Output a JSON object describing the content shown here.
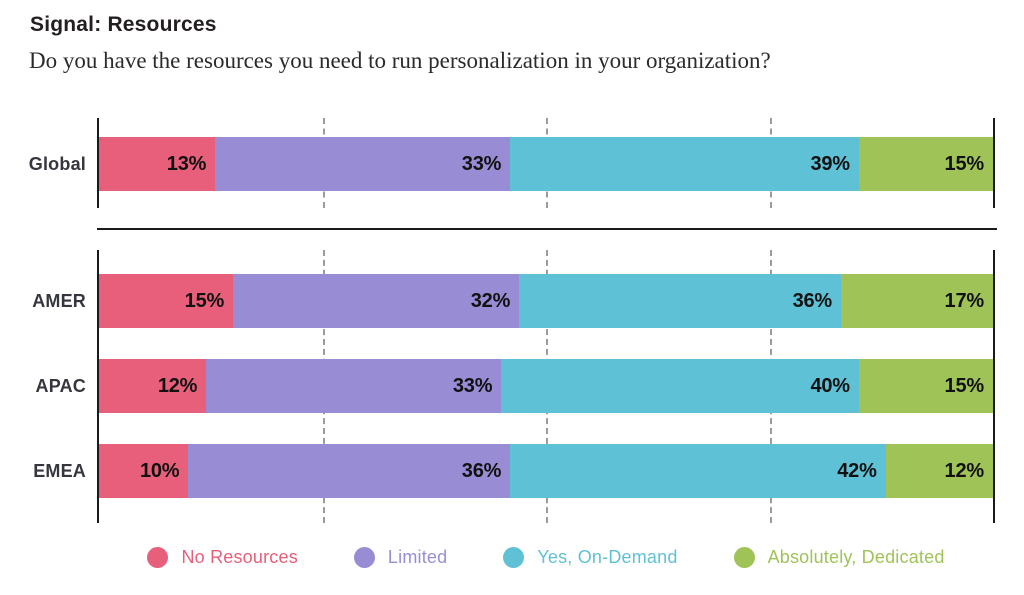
{
  "header": {
    "title": "Signal: Resources",
    "subtitle": "Do you have the resources you need to run personalization in your organization?"
  },
  "chart_data": {
    "type": "bar",
    "stacked": true,
    "orientation": "horizontal",
    "value_unit": "%",
    "xlim": [
      0,
      100
    ],
    "grid": "dashed-vertical",
    "gridlines_percent": [
      25,
      50,
      75
    ],
    "legend_position": "bottom",
    "categories": [
      "Global",
      "AMER",
      "APAC",
      "EMEA"
    ],
    "groups": [
      [
        "Global"
      ],
      [
        "AMER",
        "APAC",
        "EMEA"
      ]
    ],
    "series": [
      {
        "name": "No Resources",
        "color": "#E85F7B",
        "values": [
          13,
          15,
          12,
          10
        ]
      },
      {
        "name": "Limited",
        "color": "#988DD4",
        "values": [
          33,
          32,
          33,
          36
        ]
      },
      {
        "name": "Yes, On-Demand",
        "color": "#5FC1D5",
        "values": [
          39,
          36,
          40,
          42
        ]
      },
      {
        "name": "Absolutely, Dedicated",
        "color": "#A0C358",
        "values": [
          15,
          17,
          15,
          12
        ]
      }
    ]
  }
}
